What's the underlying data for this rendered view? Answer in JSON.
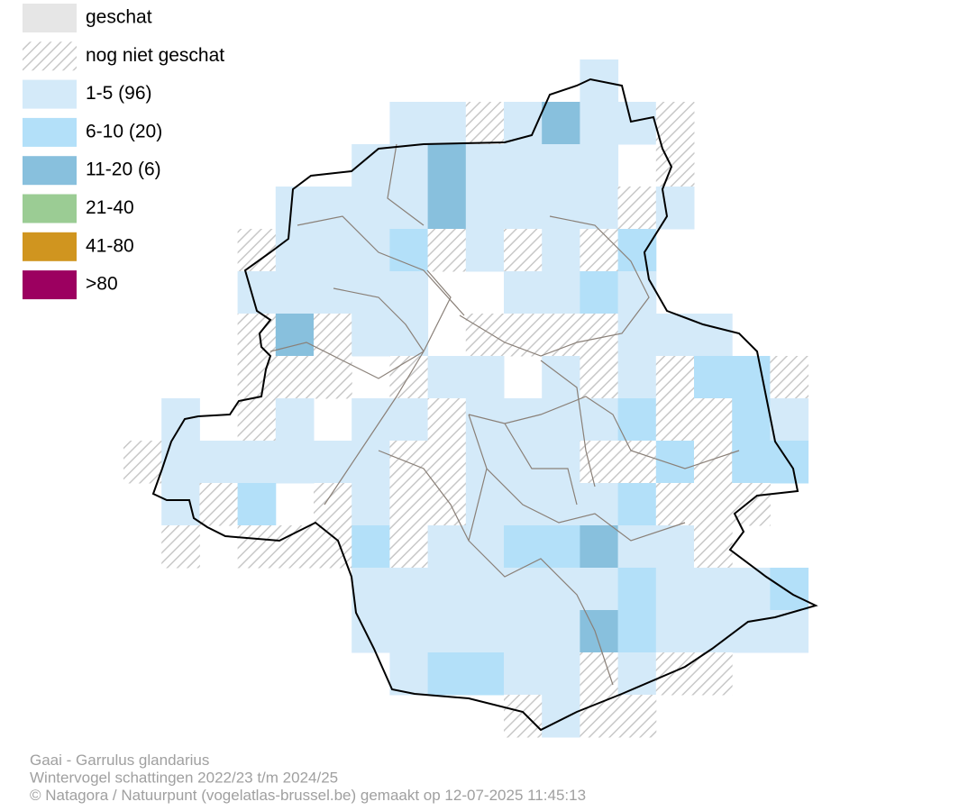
{
  "legend": {
    "items": [
      {
        "label": "geschat",
        "color": "#e6e6e6"
      },
      {
        "label": "nog niet geschat",
        "color": "#c8c8c8",
        "pattern": "hatch"
      },
      {
        "label": "1-5 (96)",
        "color": "#d4eaf9"
      },
      {
        "label": "6-10 (20)",
        "color": "#b3e0f9"
      },
      {
        "label": "11-20 (6)",
        "color": "#88c0dd"
      },
      {
        "label": "21-40",
        "color": "#9bcc94"
      },
      {
        "label": "41-80",
        "color": "#d0951f"
      },
      {
        "label": ">80",
        "color": "#9c0060"
      }
    ]
  },
  "footer": {
    "lines": [
      "Gaai - Garrulus glandarius",
      "Wintervogel schattingen 2022/23 t/m 2024/25",
      "© Natagora / Natuurpunt (vogelatlas-brussel.be) gemaakt op 12-07-2025 11:45:13"
    ]
  }
}
